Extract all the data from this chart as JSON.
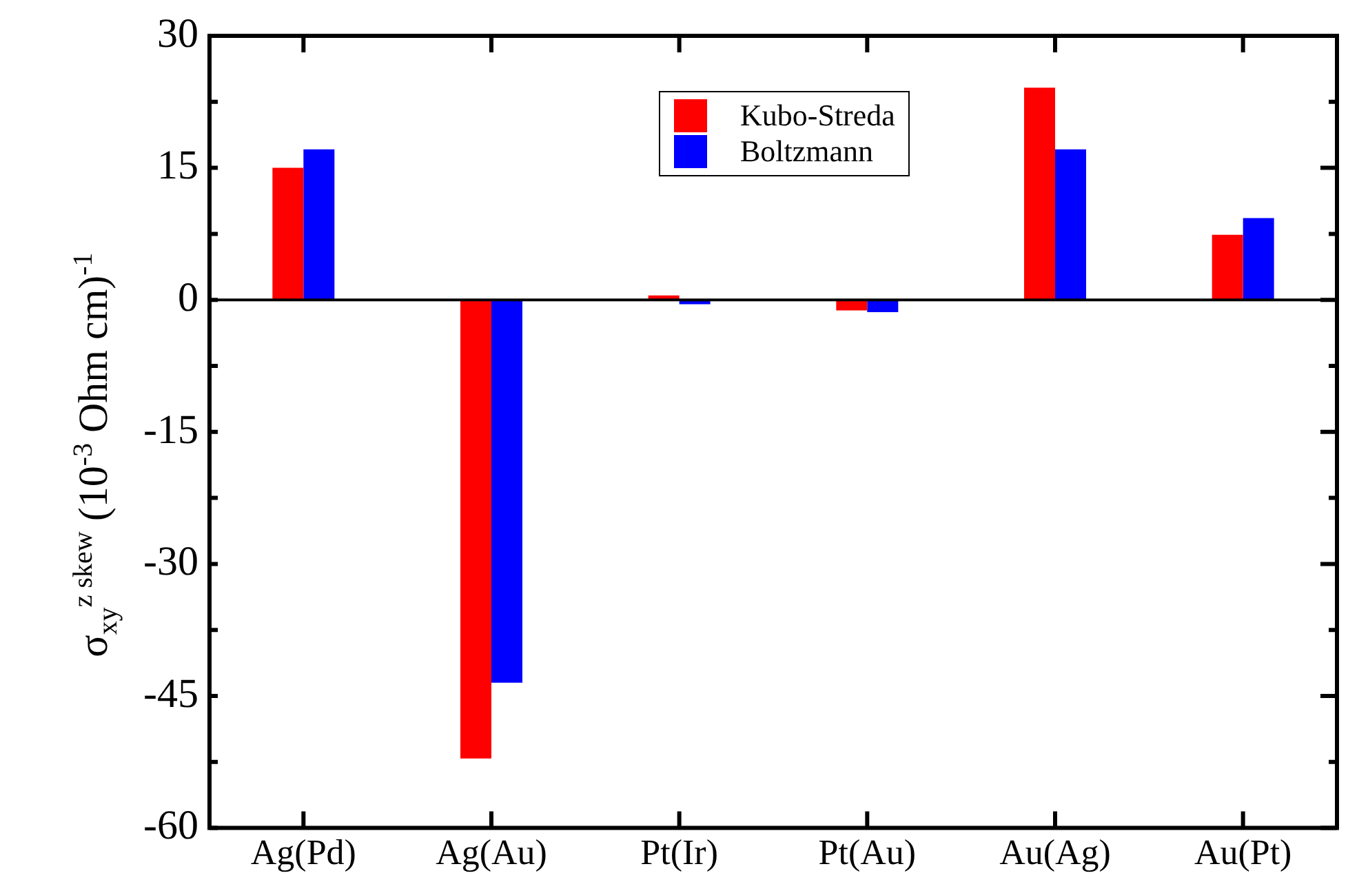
{
  "chart_data": {
    "type": "bar",
    "ylabel": "σ$_{xy}$$^{z skew}$  (10$^{-3}$ Ohm cm)$^{-1}$",
    "categories": [
      "Ag(Pd)",
      "Ag(Au)",
      "Pt(Ir)",
      "Pt(Au)",
      "Au(Ag)",
      "Au(Pt)"
    ],
    "series": [
      {
        "name": "Kubo-Streda",
        "color": "#ff0000",
        "values": [
          15.0,
          -52.1,
          0.5,
          -1.2,
          24.1,
          7.4
        ]
      },
      {
        "name": "Boltzmann",
        "color": "#0000ff",
        "values": [
          17.1,
          -43.5,
          -0.5,
          -1.4,
          17.1,
          9.3
        ]
      }
    ],
    "ylim": [
      -60,
      30
    ],
    "yticks": [
      -60,
      -45,
      -30,
      -15,
      0,
      15,
      30
    ],
    "legend": "top"
  }
}
